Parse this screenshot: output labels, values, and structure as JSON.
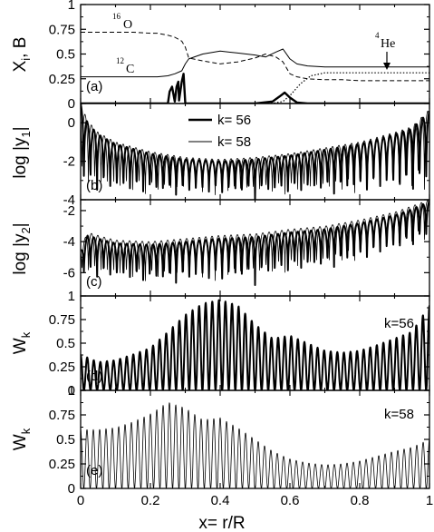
{
  "colors": {
    "ink": "#000000",
    "background": "#ffffff"
  },
  "chart_data": [
    {
      "type": "line",
      "panel": "(a)",
      "ylabel": "X",
      "ylabel_sub": "i",
      "ylabel_tail": ", B",
      "xlim": [
        0,
        1
      ],
      "ylim": [
        0,
        1
      ],
      "yticks": [
        "0",
        "0.25",
        "0.5",
        "0.75",
        "1"
      ],
      "grid": false,
      "series": [
        {
          "key": "O16",
          "style": "dashed",
          "x": [
            0,
            0.05,
            0.1,
            0.15,
            0.2,
            0.22,
            0.25,
            0.27,
            0.29,
            0.3,
            0.31,
            0.35,
            0.4,
            0.45,
            0.5,
            0.53,
            0.56,
            0.58,
            0.6,
            0.62,
            0.65,
            0.7,
            0.75,
            0.8,
            0.85,
            0.9,
            0.95,
            1.0
          ],
          "y": [
            0.72,
            0.72,
            0.72,
            0.72,
            0.71,
            0.71,
            0.69,
            0.67,
            0.63,
            0.57,
            0.46,
            0.43,
            0.4,
            0.42,
            0.46,
            0.5,
            0.47,
            0.42,
            0.3,
            0.27,
            0.25,
            0.24,
            0.24,
            0.23,
            0.23,
            0.23,
            0.23,
            0.23
          ]
        },
        {
          "key": "C12",
          "style": "solid",
          "x": [
            0,
            0.05,
            0.1,
            0.15,
            0.2,
            0.22,
            0.25,
            0.27,
            0.29,
            0.3,
            0.31,
            0.35,
            0.4,
            0.45,
            0.5,
            0.53,
            0.56,
            0.58,
            0.6,
            0.62,
            0.65,
            0.7,
            0.75,
            0.8,
            0.85,
            0.9,
            0.95,
            1.0
          ],
          "y": [
            0.27,
            0.27,
            0.27,
            0.27,
            0.27,
            0.27,
            0.28,
            0.3,
            0.33,
            0.4,
            0.45,
            0.5,
            0.53,
            0.51,
            0.49,
            0.47,
            0.52,
            0.55,
            0.45,
            0.4,
            0.38,
            0.37,
            0.37,
            0.37,
            0.37,
            0.37,
            0.37,
            0.37
          ]
        },
        {
          "key": "He4",
          "style": "dotted",
          "x": [
            0,
            0.5,
            0.55,
            0.58,
            0.6,
            0.63,
            0.66,
            0.7,
            0.8,
            0.9,
            1.0
          ],
          "y": [
            0,
            0,
            0.003,
            0.02,
            0.08,
            0.2,
            0.28,
            0.31,
            0.31,
            0.31,
            0.31
          ]
        },
        {
          "key": "B",
          "style": "bold",
          "x": [
            0,
            0.25,
            0.255,
            0.262,
            0.27,
            0.275,
            0.28,
            0.282,
            0.29,
            0.295,
            0.3,
            0.302,
            0.31,
            0.5,
            0.55,
            0.57,
            0.585,
            0.6,
            0.62,
            0.65,
            1.0
          ],
          "y": [
            0,
            0,
            0.12,
            0.17,
            0.02,
            0.17,
            0.22,
            0.03,
            0.22,
            0.3,
            0.0,
            0.0,
            0,
            0,
            0.02,
            0.07,
            0.11,
            0.06,
            0.01,
            0,
            0
          ]
        }
      ],
      "annotations": {
        "o16": {
          "sup": "16",
          "base": "O"
        },
        "c12": {
          "sup": "12",
          "base": "C"
        },
        "he4": {
          "sup": "4",
          "base": "He"
        }
      }
    },
    {
      "type": "line",
      "panel": "(b)",
      "ylabel": "log |y",
      "ylabel_sub": "1",
      "ylabel_tail": "|",
      "xlim": [
        0,
        1
      ],
      "ylim": [
        -4,
        1
      ],
      "yticks": [
        "-4",
        "-2",
        "0"
      ],
      "grid": false,
      "legend": {
        "position": "top-center"
      },
      "series": [
        {
          "name": "k= 56",
          "style": "thick",
          "oscillations": 53,
          "x": [
            0,
            0.02,
            0.05,
            0.1,
            0.2,
            0.3,
            0.4,
            0.5,
            0.6,
            0.7,
            0.8,
            0.9,
            0.95,
            1.0
          ],
          "envelope_upper": [
            1,
            0.0,
            -0.6,
            -1.1,
            -1.6,
            -1.9,
            -2.0,
            -1.9,
            -1.7,
            -1.4,
            -1.1,
            -0.6,
            -0.3,
            0.6
          ],
          "envelope_lower": [
            -4,
            -4,
            -4,
            -4,
            -4,
            -4,
            -4,
            -4,
            -4,
            -4,
            -4,
            -4,
            -4,
            -4
          ]
        },
        {
          "name": "k= 58",
          "style": "thin",
          "oscillations": 55,
          "x": [
            0,
            0.02,
            0.05,
            0.1,
            0.2,
            0.3,
            0.4,
            0.5,
            0.6,
            0.7,
            0.8,
            0.9,
            0.95,
            1.0
          ],
          "envelope_upper": [
            1,
            0.1,
            -0.5,
            -1.0,
            -1.5,
            -1.8,
            -1.9,
            -1.8,
            -1.6,
            -1.3,
            -1.0,
            -0.5,
            -0.2,
            0.7
          ],
          "envelope_lower": [
            -4,
            -4,
            -4,
            -4,
            -4,
            -4,
            -4,
            -4,
            -4,
            -4,
            -4,
            -4,
            -4,
            -4
          ]
        }
      ]
    },
    {
      "type": "line",
      "panel": "(c)",
      "ylabel": "log |y",
      "ylabel_sub": "2",
      "ylabel_tail": "|",
      "xlim": [
        0,
        1
      ],
      "ylim": [
        -7.5,
        -1.3
      ],
      "yticks": [
        "-6",
        "-4",
        "-2"
      ],
      "grid": false,
      "series": [
        {
          "name": "k= 56",
          "style": "thick",
          "oscillations": 53,
          "x": [
            0,
            0.02,
            0.05,
            0.1,
            0.2,
            0.3,
            0.4,
            0.5,
            0.6,
            0.7,
            0.8,
            0.9,
            0.95,
            1.0
          ],
          "envelope_upper": [
            -4.6,
            -3.6,
            -3.8,
            -4.1,
            -4.2,
            -4.0,
            -3.8,
            -3.7,
            -3.4,
            -3.2,
            -2.8,
            -2.3,
            -1.9,
            -1.4
          ],
          "envelope_lower": [
            -6.6,
            -6.6,
            -6.7,
            -6.8,
            -7.0,
            -7.0,
            -7.0,
            -6.8,
            -6.4,
            -6.1,
            -5.6,
            -5.0,
            -4.6,
            -4.2
          ]
        },
        {
          "name": "k= 58",
          "style": "thin",
          "oscillations": 55,
          "x": [
            0,
            0.02,
            0.05,
            0.1,
            0.2,
            0.3,
            0.4,
            0.5,
            0.6,
            0.7,
            0.8,
            0.9,
            0.95,
            1.0
          ],
          "envelope_upper": [
            -4.4,
            -3.4,
            -3.6,
            -3.9,
            -4.0,
            -3.8,
            -3.6,
            -3.5,
            -3.2,
            -3.0,
            -2.6,
            -2.1,
            -1.7,
            -1.3
          ],
          "envelope_lower": [
            -6.5,
            -6.5,
            -6.6,
            -6.7,
            -6.9,
            -6.9,
            -6.9,
            -6.7,
            -6.3,
            -6.0,
            -5.5,
            -4.9,
            -4.5,
            -4.1
          ]
        }
      ]
    },
    {
      "type": "line",
      "panel": "(d)",
      "label": "k=56",
      "ylabel": "W",
      "ylabel_sub": "k",
      "ylabel_tail": "",
      "xlim": [
        0,
        1
      ],
      "ylim": [
        0,
        1
      ],
      "yticks": [
        "0",
        "0.25",
        "0.5",
        "0.75",
        "1"
      ],
      "grid": false,
      "series": [
        {
          "name": "k=56",
          "style": "thick",
          "oscillations": 53,
          "x": [
            0,
            0.05,
            0.1,
            0.15,
            0.2,
            0.25,
            0.3,
            0.35,
            0.4,
            0.45,
            0.5,
            0.55,
            0.6,
            0.65,
            0.7,
            0.75,
            0.8,
            0.85,
            0.9,
            0.95,
            1.0
          ],
          "envelope": [
            0.38,
            0.3,
            0.32,
            0.38,
            0.45,
            0.62,
            0.8,
            0.92,
            0.96,
            0.9,
            0.7,
            0.55,
            0.58,
            0.5,
            0.42,
            0.4,
            0.42,
            0.48,
            0.55,
            0.62,
            0.9
          ]
        }
      ]
    },
    {
      "type": "line",
      "panel": "(e)",
      "label": "k=58",
      "ylabel": "W",
      "ylabel_sub": "k",
      "ylabel_tail": "",
      "xlabel": "x= r/R",
      "xlim": [
        0,
        1
      ],
      "ylim": [
        0,
        1
      ],
      "xticks": [
        "0",
        "0.2",
        "0.4",
        "0.6",
        "0.8",
        "1"
      ],
      "yticks": [
        "0",
        "0.25",
        "0.5",
        "0.75",
        "1"
      ],
      "grid": false,
      "series": [
        {
          "name": "k=58",
          "style": "thin",
          "oscillations": 55,
          "x": [
            0,
            0.05,
            0.1,
            0.15,
            0.2,
            0.25,
            0.3,
            0.35,
            0.4,
            0.45,
            0.5,
            0.55,
            0.6,
            0.65,
            0.7,
            0.75,
            0.8,
            0.85,
            0.9,
            0.95,
            1.0
          ],
          "envelope": [
            0.6,
            0.6,
            0.62,
            0.68,
            0.76,
            0.88,
            0.82,
            0.7,
            0.72,
            0.62,
            0.5,
            0.38,
            0.3,
            0.26,
            0.24,
            0.25,
            0.28,
            0.33,
            0.38,
            0.42,
            0.5
          ]
        }
      ]
    }
  ]
}
